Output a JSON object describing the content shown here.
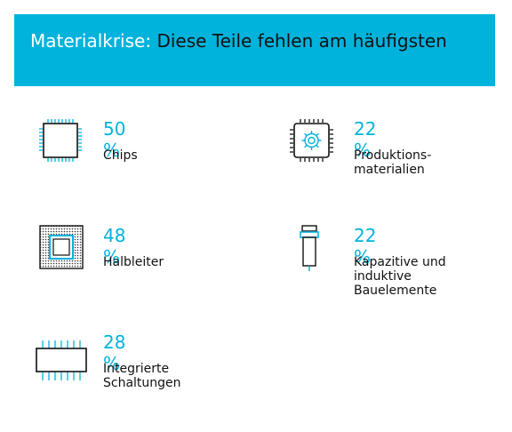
{
  "header": {
    "title_lead": "Materialkrise:",
    "title_rest": "Diese Teile fehlen am häufigsten"
  },
  "colors": {
    "accent": "#00b3dc",
    "text": "#111111"
  },
  "items": [
    {
      "percent": "50 %",
      "label": "Chips",
      "icon": "chip-icon"
    },
    {
      "percent": "22 %",
      "label": "Produktions-\nmaterialien",
      "icon": "gear-chip-icon"
    },
    {
      "percent": "48 %",
      "label": "Halbleiter",
      "icon": "semiconductor-icon"
    },
    {
      "percent": "22 %",
      "label": "Kapazitive und\ninduktive\nBauelemente",
      "icon": "component-icon"
    },
    {
      "percent": "28 %",
      "label": "Integrierte\nSchaltungen",
      "icon": "integrated-circuit-icon"
    }
  ]
}
